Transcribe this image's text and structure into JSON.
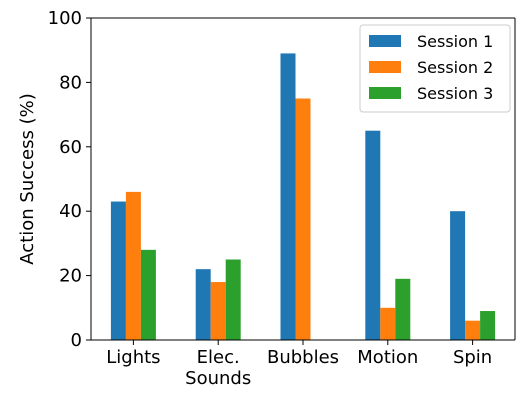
{
  "chart_data": {
    "type": "bar",
    "categories": [
      [
        "Lights"
      ],
      [
        "Elec.",
        "Sounds"
      ],
      [
        "Bubbles"
      ],
      [
        "Motion"
      ],
      [
        "Spin"
      ]
    ],
    "series": [
      {
        "name": "Session 1",
        "color": "#1f77b4",
        "values": [
          43,
          22,
          89,
          65,
          40
        ]
      },
      {
        "name": "Session 2",
        "color": "#ff7f0e",
        "values": [
          46,
          18,
          75,
          10,
          6
        ]
      },
      {
        "name": "Session 3",
        "color": "#2ca02c",
        "values": [
          28,
          25,
          0,
          19,
          9
        ]
      }
    ],
    "title": "",
    "xlabel": "",
    "ylabel": "Action Success (%)",
    "ylim": [
      0,
      100
    ],
    "yticks": [
      0,
      20,
      40,
      60,
      80,
      100
    ],
    "grid": false,
    "legend_position": "top-right"
  }
}
